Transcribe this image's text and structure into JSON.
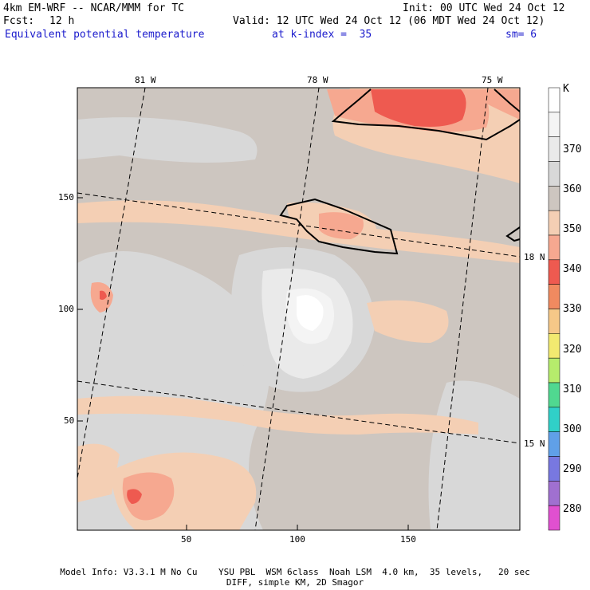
{
  "header": {
    "model": "4km EM-WRF -- NCAR/MMM for TC",
    "init": "Init: 00 UTC Wed 24 Oct 12",
    "fcst_label": "Fcst:",
    "fcst_value": "12 h",
    "valid": "Valid: 12 UTC Wed 24 Oct 12 (06 MDT Wed 24 Oct 12)",
    "field": "Equivalent potential temperature",
    "level": "at k-index =  35",
    "smooth": "sm= 6"
  },
  "map": {
    "lon_labels": [
      "81 W",
      "78 W",
      "75 W"
    ],
    "lat_labels": [
      "18 N",
      "15 N"
    ],
    "y_ticks": [
      "150",
      "100",
      "50"
    ],
    "x_ticks": [
      "50",
      "100",
      "150"
    ]
  },
  "colorbar": {
    "unit": "K",
    "labels": [
      "370",
      "360",
      "350",
      "340",
      "330",
      "320",
      "310",
      "300",
      "290",
      "280"
    ],
    "colors": [
      "#ffffff",
      "#f4f4f4",
      "#eaeaea",
      "#d8d8d8",
      "#cdc6c0",
      "#f4cfb4",
      "#f6a890",
      "#ee5a50",
      "#f08a60",
      "#f6c888",
      "#f2ea70",
      "#b6ec6c",
      "#50d890",
      "#30d0c8",
      "#60a0e8",
      "#7878e0",
      "#a070d0",
      "#e050d0"
    ]
  },
  "footer": {
    "line1": "Model Info: V3.3.1 M No Cu    YSU PBL  WSM 6class  Noah LSM  4.0 km,  35 levels,   20 sec",
    "line2": "DIFF, simple KM, 2D Smagor"
  }
}
